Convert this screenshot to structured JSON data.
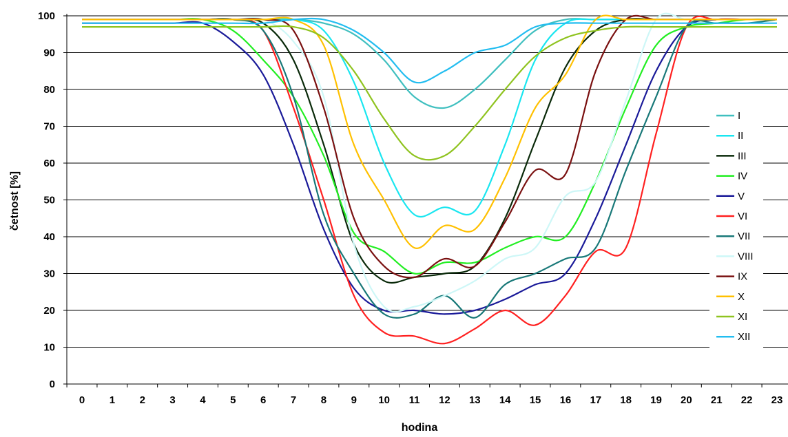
{
  "chart_data": {
    "type": "line",
    "title": "",
    "xlabel": "hodina",
    "ylabel": "četnost [%]",
    "x": [
      0,
      1,
      2,
      3,
      4,
      5,
      6,
      7,
      8,
      9,
      10,
      11,
      12,
      13,
      14,
      15,
      16,
      17,
      18,
      19,
      20,
      21,
      22,
      23
    ],
    "xlim": [
      0,
      23
    ],
    "ylim": [
      0,
      100
    ],
    "yticks": [
      0,
      10,
      20,
      30,
      40,
      50,
      60,
      70,
      80,
      90,
      100
    ],
    "grid": "horizontal",
    "legend_position": "right",
    "series": [
      {
        "name": "I",
        "color": "#3fbfbf",
        "values": [
          99,
          99,
          99,
          99,
          99,
          99,
          99,
          99,
          98,
          95,
          88,
          78,
          75,
          80,
          88,
          96,
          99,
          99,
          99,
          99,
          99,
          99,
          99,
          99
        ]
      },
      {
        "name": "II",
        "color": "#19e6f0",
        "values": [
          99,
          99,
          99,
          99,
          99,
          99,
          99,
          99,
          96,
          82,
          60,
          46,
          48,
          47,
          65,
          88,
          98,
          99,
          99,
          99,
          99,
          99,
          99,
          99
        ]
      },
      {
        "name": "III",
        "color": "#0a2a0a",
        "values": [
          99,
          99,
          99,
          99,
          99,
          99,
          98,
          88,
          65,
          38,
          28,
          29,
          30,
          32,
          45,
          66,
          86,
          96,
          99,
          99,
          99,
          99,
          99,
          99
        ]
      },
      {
        "name": "IV",
        "color": "#22ee22",
        "values": [
          99,
          99,
          99,
          99,
          99,
          96,
          88,
          78,
          62,
          41,
          36,
          30,
          33,
          33,
          37,
          40,
          40,
          55,
          75,
          92,
          97,
          98,
          99,
          99
        ]
      },
      {
        "name": "V",
        "color": "#1a1a99",
        "values": [
          98,
          98,
          98,
          98,
          98,
          93,
          84,
          65,
          42,
          26,
          20,
          20,
          19,
          20,
          23,
          27,
          30,
          45,
          65,
          85,
          97,
          99,
          99,
          99
        ]
      },
      {
        "name": "VI",
        "color": "#ff2020",
        "values": [
          99,
          99,
          99,
          99,
          99,
          99,
          96,
          75,
          50,
          24,
          14,
          13,
          11,
          15,
          20,
          16,
          24,
          36,
          37,
          68,
          97,
          99,
          99,
          99
        ]
      },
      {
        "name": "VII",
        "color": "#187878",
        "values": [
          99,
          99,
          99,
          99,
          99,
          99,
          96,
          78,
          46,
          30,
          19,
          19,
          24,
          18,
          27,
          30,
          34,
          37,
          58,
          78,
          97,
          98,
          98,
          99
        ]
      },
      {
        "name": "VIII",
        "color": "#cdf7f7",
        "values": [
          99,
          99,
          99,
          99,
          99,
          99,
          99,
          93,
          78,
          38,
          21,
          21,
          24,
          28,
          34,
          37,
          51,
          55,
          77,
          99,
          99,
          99,
          99,
          99
        ]
      },
      {
        "name": "IX",
        "color": "#7a1010",
        "values": [
          99,
          99,
          99,
          99,
          99,
          99,
          99,
          96,
          75,
          45,
          32,
          29,
          34,
          32,
          44,
          58,
          57,
          85,
          99,
          99,
          99,
          99,
          99,
          99
        ]
      },
      {
        "name": "X",
        "color": "#ffc000",
        "values": [
          99,
          99,
          99,
          99,
          99,
          99,
          99,
          99,
          92,
          65,
          50,
          37,
          43,
          42,
          56,
          75,
          84,
          99,
          99,
          99,
          99,
          99,
          99,
          99
        ]
      },
      {
        "name": "XI",
        "color": "#8fc31f",
        "values": [
          97,
          97,
          97,
          97,
          97,
          97,
          97,
          97,
          94,
          85,
          72,
          62,
          62,
          70,
          80,
          89,
          94,
          96,
          97,
          97,
          97,
          97,
          97,
          97
        ]
      },
      {
        "name": "XII",
        "color": "#22bdf0",
        "values": [
          98,
          98,
          98,
          98,
          98,
          98,
          98,
          99,
          99,
          96,
          90,
          82,
          85,
          90,
          92,
          97,
          98,
          98,
          98,
          98,
          98,
          98,
          98,
          98
        ]
      }
    ]
  }
}
